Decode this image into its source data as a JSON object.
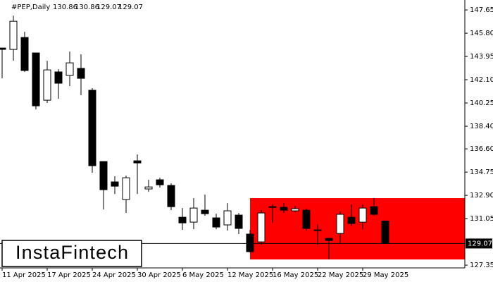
{
  "chart_data": {
    "type": "candlestick",
    "symbol": "#PEP,Daily",
    "watermark": "InstaFintech",
    "categories": [
      "11 Apr 2025",
      null,
      null,
      null,
      "17 Apr 2025",
      null,
      null,
      null,
      "24 Apr 2025",
      null,
      null,
      null,
      "30 Apr 2025",
      null,
      null,
      null,
      "6 May 2025",
      null,
      null,
      null,
      "12 May 2025",
      null,
      null,
      null,
      "16 May 2025",
      null,
      null,
      null,
      "22 May 2025",
      null,
      null,
      null,
      "29 May 2025",
      null,
      null
    ],
    "open": [
      144.62,
      144.51,
      145.46,
      144.23,
      140.47,
      142.72,
      142.44,
      143.0,
      141.26,
      135.59,
      133.97,
      132.57,
      135.65,
      133.41,
      134.14,
      133.69,
      131.16,
      130.77,
      131.72,
      131.11,
      130.55,
      131.33,
      129.82,
      129.2,
      132.0,
      131.95,
      131.67,
      131.72,
      130.15,
      129.48,
      129.87,
      131.16,
      130.77,
      132.0,
      130.86
    ],
    "high": [
      144.62,
      147.2,
      145.91,
      144.23,
      143.61,
      142.94,
      144.34,
      144.12,
      141.43,
      135.59,
      134.42,
      134.47,
      136.15,
      134.14,
      134.3,
      133.86,
      131.89,
      132.68,
      132.96,
      131.44,
      132.28,
      131.5,
      130.15,
      131.72,
      132.17,
      132.28,
      132.06,
      131.84,
      130.6,
      129.5,
      131.61,
      132.17,
      132.17,
      132.68,
      130.86
    ],
    "low": [
      142.21,
      143.61,
      142.72,
      139.74,
      140.25,
      140.58,
      141.59,
      140.87,
      134.7,
      131.78,
      133.01,
      131.5,
      133.01,
      133.18,
      133.52,
      131.72,
      130.15,
      130.21,
      131.28,
      130.21,
      130.1,
      129.82,
      128.36,
      128.92,
      130.71,
      131.5,
      131.56,
      130.1,
      128.92,
      127.8,
      129.09,
      130.49,
      130.21,
      131.28,
      129.07
    ],
    "close": [
      144.51,
      146.75,
      142.83,
      140.02,
      142.88,
      141.82,
      143.44,
      142.21,
      135.26,
      133.35,
      133.63,
      134.3,
      135.48,
      133.57,
      133.74,
      132.0,
      130.71,
      131.89,
      131.44,
      130.38,
      131.67,
      130.27,
      128.42,
      131.5,
      131.95,
      131.72,
      131.84,
      130.27,
      130.1,
      129.31,
      131.39,
      130.66,
      131.89,
      131.39,
      129.07
    ],
    "up_color": "#ffffff",
    "down_color": "#000000",
    "zone": {
      "top": 132.68,
      "bottom": 127.8,
      "color": "#ff0000"
    },
    "ylim": [
      127.13,
      148.44
    ],
    "yticks": [
      127.35,
      131.05,
      {
        "value": 132.9,
        "label": "132.90"
      },
      134.75,
      {
        "value": 136.6,
        "label": "136.60"
      },
      {
        "value": 138.4,
        "label": "138.40"
      },
      140.25,
      {
        "value": 142.1,
        "label": "142.10"
      },
      143.95,
      {
        "value": 145.8,
        "label": "145.80"
      },
      147.65
    ]
  }
}
